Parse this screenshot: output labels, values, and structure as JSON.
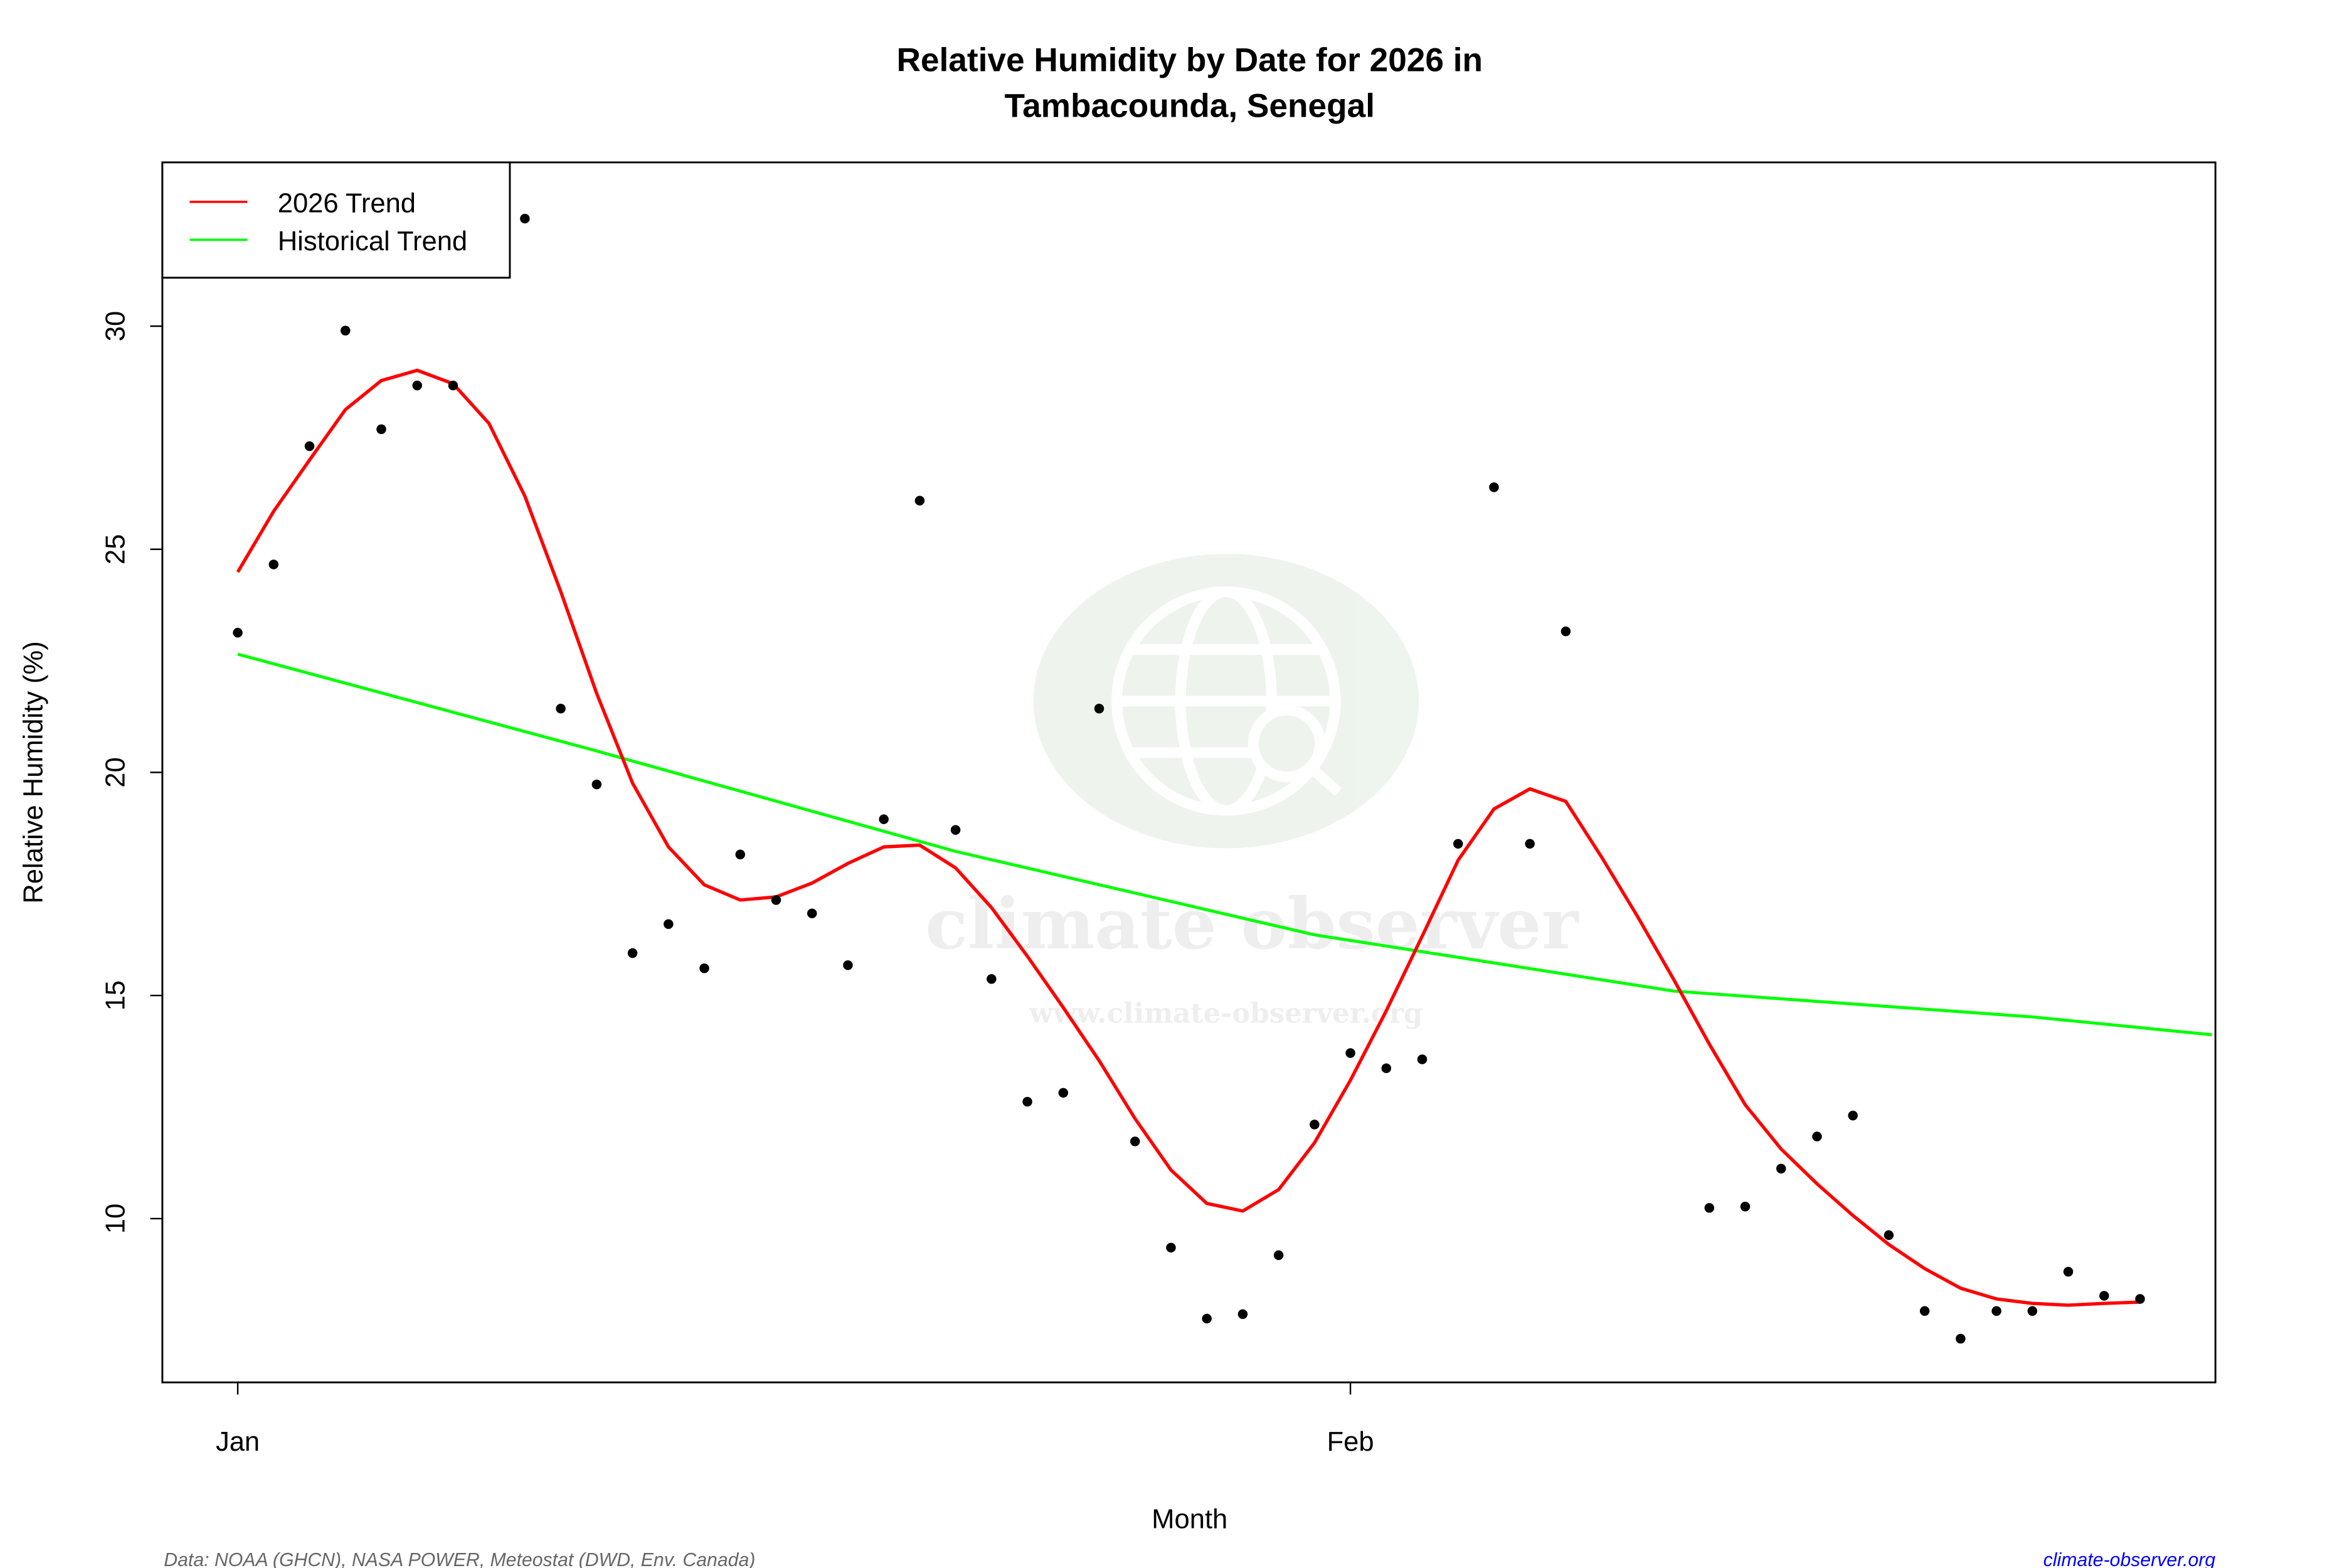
{
  "chart_data": {
    "type": "line",
    "title": [
      "Relative Humidity by Date for 2026 in",
      "Tambacounda, Senegal"
    ],
    "xlabel": "Month",
    "ylabel": "Relative Humidity (%)",
    "x_tick_labels": [
      {
        "label": "Jan",
        "day": 0
      },
      {
        "label": "Feb",
        "day": 31
      }
    ],
    "y_ticks": [
      10,
      15,
      20,
      25,
      30
    ],
    "xlim_days_from_jan1": [
      -2.1,
      55.1
    ],
    "ylim": [
      6.33,
      33.67
    ],
    "grid": false,
    "legend_position": "top-left",
    "x_dates": [
      "2026-01-01",
      "2026-01-02",
      "2026-01-03",
      "2026-01-04",
      "2026-01-05",
      "2026-01-06",
      "2026-01-07",
      "2026-01-08",
      "2026-01-09",
      "2026-01-10",
      "2026-01-11",
      "2026-01-12",
      "2026-01-13",
      "2026-01-14",
      "2026-01-15",
      "2026-01-16",
      "2026-01-17",
      "2026-01-18",
      "2026-01-19",
      "2026-01-20",
      "2026-01-21",
      "2026-01-22",
      "2026-01-23",
      "2026-01-24",
      "2026-01-25",
      "2026-01-26",
      "2026-01-27",
      "2026-01-28",
      "2026-01-29",
      "2026-01-30",
      "2026-01-31",
      "2026-02-01",
      "2026-02-02",
      "2026-02-03",
      "2026-02-04",
      "2026-02-05",
      "2026-02-06",
      "2026-02-07",
      "2026-02-08",
      "2026-02-09",
      "2026-02-10",
      "2026-02-11",
      "2026-02-12",
      "2026-02-13",
      "2026-02-14",
      "2026-02-15",
      "2026-02-16",
      "2026-02-17",
      "2026-02-18",
      "2026-02-19",
      "2026-02-20",
      "2026-02-21",
      "2026-02-22",
      "2026-02-23"
    ],
    "observed": [
      23.13,
      24.66,
      27.31,
      29.9,
      27.69,
      28.67,
      28.67,
      null,
      32.41,
      21.43,
      19.73,
      15.95,
      16.6,
      15.61,
      18.16,
      17.14,
      16.84,
      15.68,
      18.95,
      26.09,
      18.71,
      15.37,
      12.62,
      12.82,
      21.43,
      11.73,
      9.35,
      7.76,
      7.86,
      9.18,
      12.11,
      13.71,
      13.37,
      13.57,
      18.4,
      26.39,
      18.4,
      23.16,
      null,
      null,
      null,
      10.24,
      10.27,
      11.12,
      11.84,
      12.31,
      9.63,
      7.93,
      7.31,
      7.93,
      7.93,
      8.81,
      8.27,
      8.2
    ],
    "series": [
      {
        "name": "2026 Trend",
        "color": "#ff0000",
        "values": [
          24.49,
          25.85,
          27.0,
          28.13,
          28.78,
          29.01,
          28.71,
          27.82,
          26.19,
          24.05,
          21.77,
          19.76,
          18.33,
          17.48,
          17.14,
          17.21,
          17.52,
          17.96,
          18.33,
          18.37,
          17.86,
          16.97,
          15.88,
          14.73,
          13.54,
          12.24,
          11.09,
          10.34,
          10.17,
          10.65,
          11.7,
          13.1,
          14.66,
          16.33,
          18.03,
          19.18,
          19.63,
          19.35,
          18.1,
          16.77,
          15.37,
          13.91,
          12.55,
          11.56,
          10.78,
          10.07,
          9.42,
          8.88,
          8.44,
          8.2,
          8.1,
          8.06,
          8.1,
          8.13
        ]
      },
      {
        "name": "Historical Trend",
        "color": "#00ff00",
        "points": [
          {
            "date": "2026-01-01",
            "value": 22.65
          },
          {
            "date": "2026-01-11",
            "value": 20.48
          },
          {
            "date": "2026-01-21",
            "value": 18.23
          },
          {
            "date": "2026-01-31",
            "value": 16.36
          },
          {
            "date": "2026-02-10",
            "value": 15.1
          },
          {
            "date": "2026-02-20",
            "value": 14.52
          },
          {
            "date": "2026-02-25",
            "value": 14.12
          }
        ]
      }
    ]
  },
  "watermark": {
    "name": "climate observer",
    "url": "www.climate-observer.org",
    "icon": "globe-search-icon"
  },
  "footer": {
    "source": "Data: NOAA (GHCN), NASA POWER, Meteostat (DWD, Env. Canada)",
    "site": "climate-observer.org",
    "site_color": "#0000ff"
  }
}
